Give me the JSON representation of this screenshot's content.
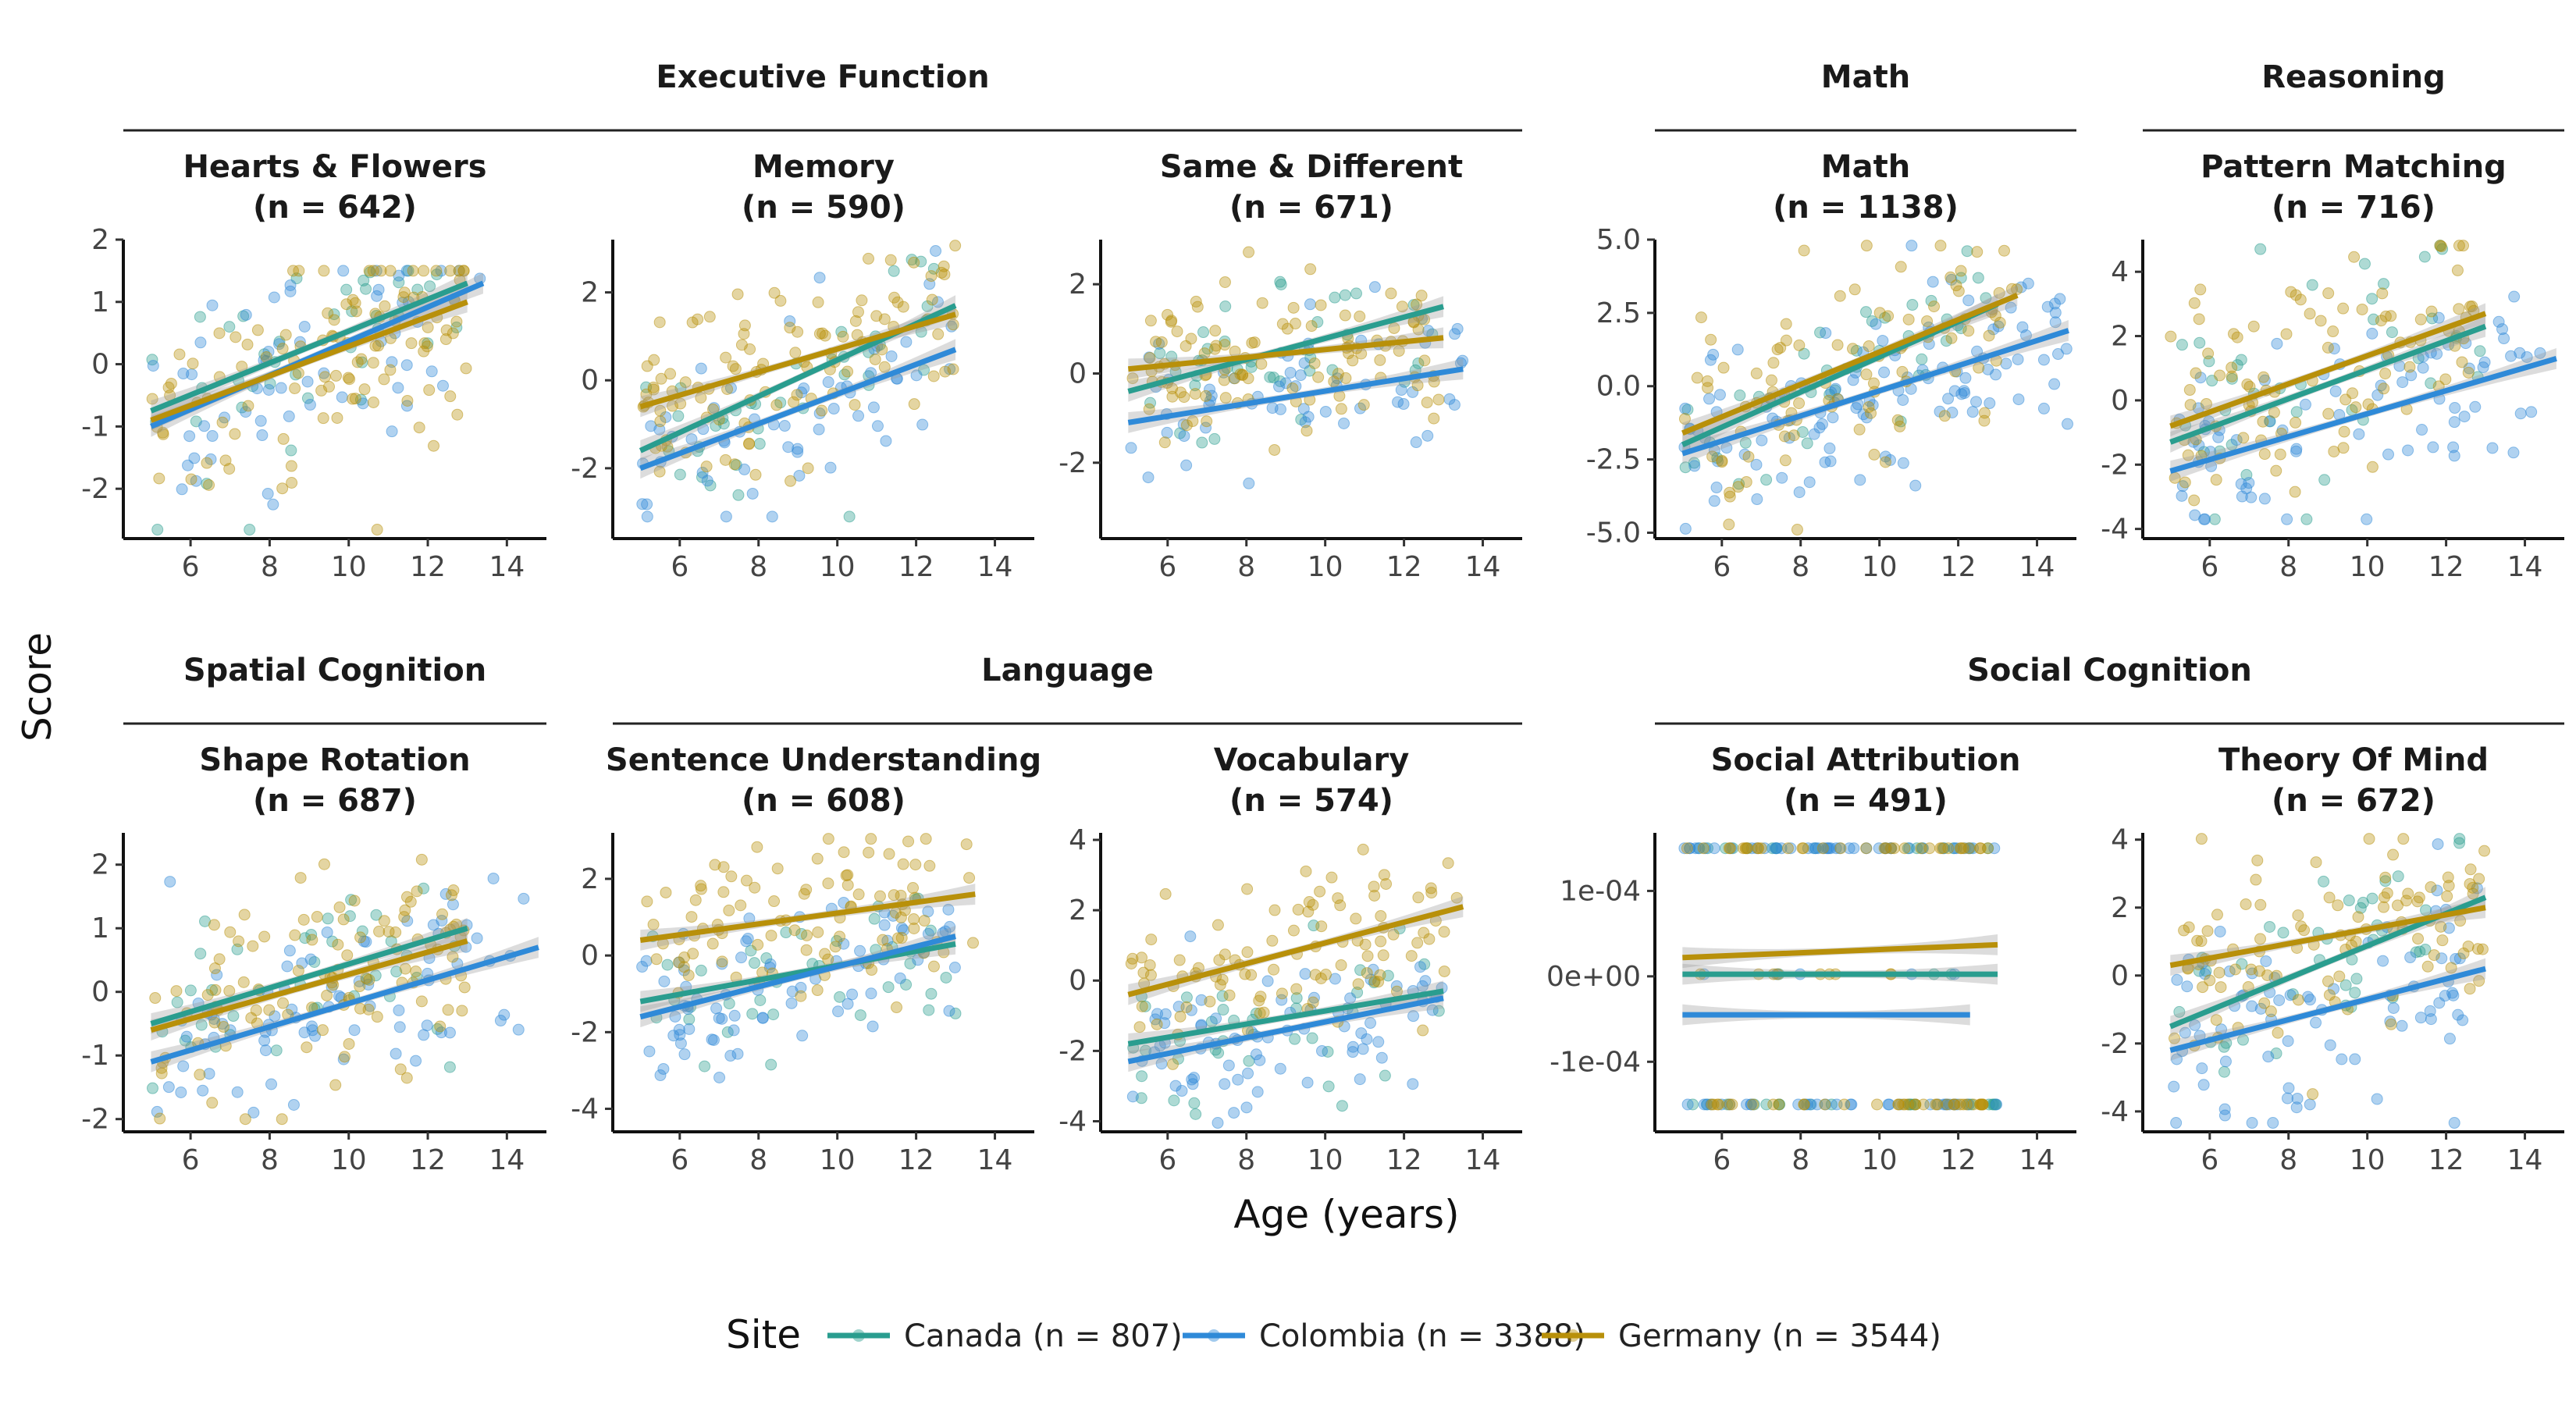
{
  "chart_data": {
    "type": "scatter",
    "xlabel": "Age (years)",
    "ylabel": "Score",
    "legend": {
      "title": "Site",
      "position": "bottom",
      "entries": [
        {
          "name": "Canada (n = 807)",
          "color": "#2a9d8f"
        },
        {
          "name": "Colombia (n = 3388)",
          "color": "#2f8ad8"
        },
        {
          "name": "Germany (n = 3544)",
          "color": "#b8900a"
        }
      ]
    },
    "groups": [
      {
        "name": "Executive Function"
      },
      {
        "name": "Math"
      },
      {
        "name": "Reasoning"
      },
      {
        "name": "Spatial Cognition"
      },
      {
        "name": "Language"
      },
      {
        "name": "Social Cognition"
      }
    ],
    "panels": [
      {
        "title": "Hearts & Flowers",
        "n_label": "(n = 642)",
        "xlim": [
          4.3,
          15
        ],
        "ylim": [
          -2.8,
          2
        ],
        "x_ticks": [
          "6",
          "8",
          "10",
          "12",
          "14"
        ],
        "y_ticks": [
          "-2",
          "-1",
          "0",
          "1",
          "2"
        ],
        "clip_top": 1.5,
        "clip_bottom": null,
        "noise": 0.9,
        "series": [
          {
            "site": "Canada",
            "fit": [
              [
                5,
                -0.75
              ],
              [
                13,
                1.3
              ]
            ],
            "n": 40
          },
          {
            "site": "Colombia",
            "fit": [
              [
                5,
                -1.0
              ],
              [
                13.4,
                1.3
              ]
            ],
            "n": 60
          },
          {
            "site": "Germany",
            "fit": [
              [
                5,
                -0.9
              ],
              [
                13,
                1.0
              ]
            ],
            "n": 110
          }
        ]
      },
      {
        "title": "Memory",
        "n_label": "(n = 590)",
        "xlim": [
          4.3,
          15
        ],
        "ylim": [
          -3.6,
          3.2
        ],
        "x_ticks": [
          "6",
          "8",
          "10",
          "12",
          "14"
        ],
        "y_ticks": [
          "-2",
          "0",
          "2"
        ],
        "clip_top": null,
        "clip_bottom": -3.1,
        "noise": 1.0,
        "series": [
          {
            "site": "Canada",
            "fit": [
              [
                5,
                -1.6
              ],
              [
                13,
                1.7
              ]
            ],
            "n": 40
          },
          {
            "site": "Colombia",
            "fit": [
              [
                5,
                -2.0
              ],
              [
                13,
                0.7
              ]
            ],
            "n": 60
          },
          {
            "site": "Germany",
            "fit": [
              [
                5,
                -0.6
              ],
              [
                13,
                1.5
              ]
            ],
            "n": 110
          }
        ]
      },
      {
        "title": "Same & Different",
        "n_label": "(n = 671)",
        "xlim": [
          4.3,
          15
        ],
        "ylim": [
          -3.7,
          3.0
        ],
        "x_ticks": [
          "6",
          "8",
          "10",
          "12",
          "14"
        ],
        "y_ticks": [
          "-2",
          "0",
          "2"
        ],
        "clip_top": null,
        "clip_bottom": null,
        "noise": 0.85,
        "series": [
          {
            "site": "Canada",
            "fit": [
              [
                5,
                -0.4
              ],
              [
                13,
                1.5
              ]
            ],
            "n": 40
          },
          {
            "site": "Colombia",
            "fit": [
              [
                5,
                -1.1
              ],
              [
                13.5,
                0.1
              ]
            ],
            "n": 60
          },
          {
            "site": "Germany",
            "fit": [
              [
                5,
                0.1
              ],
              [
                13,
                0.8
              ]
            ],
            "n": 110
          }
        ]
      },
      {
        "title": "Math",
        "n_label": "(n = 1138)",
        "xlim": [
          4.3,
          15
        ],
        "ylim": [
          -5.2,
          5.0
        ],
        "x_ticks": [
          "6",
          "8",
          "10",
          "12",
          "14"
        ],
        "y_ticks": [
          "-5.0",
          "-2.5",
          "0.0",
          "2.5",
          "5.0"
        ],
        "clip_top": null,
        "clip_bottom": null,
        "noise": 1.5,
        "series": [
          {
            "site": "Canada",
            "fit": [
              [
                5,
                -2.0
              ],
              [
                13,
                2.8
              ]
            ],
            "n": 40
          },
          {
            "site": "Colombia",
            "fit": [
              [
                5,
                -2.3
              ],
              [
                14.8,
                1.9
              ]
            ],
            "n": 120
          },
          {
            "site": "Germany",
            "fit": [
              [
                5,
                -1.6
              ],
              [
                13.5,
                3.1
              ]
            ],
            "n": 100
          }
        ]
      },
      {
        "title": "Pattern Matching",
        "n_label": "(n = 716)",
        "xlim": [
          4.3,
          15
        ],
        "ylim": [
          -4.3,
          5.0
        ],
        "x_ticks": [
          "6",
          "8",
          "10",
          "12",
          "14"
        ],
        "y_ticks": [
          "-4",
          "-2",
          "0",
          "2",
          "4"
        ],
        "clip_top": null,
        "clip_bottom": -3.7,
        "noise": 1.6,
        "series": [
          {
            "site": "Canada",
            "fit": [
              [
                5,
                -1.3
              ],
              [
                13,
                2.3
              ]
            ],
            "n": 40
          },
          {
            "site": "Colombia",
            "fit": [
              [
                5,
                -2.2
              ],
              [
                14.8,
                1.3
              ]
            ],
            "n": 80
          },
          {
            "site": "Germany",
            "fit": [
              [
                5,
                -0.8
              ],
              [
                13,
                2.7
              ]
            ],
            "n": 100
          }
        ]
      },
      {
        "title": "Shape Rotation",
        "n_label": "(n = 687)",
        "xlim": [
          4.3,
          15
        ],
        "ylim": [
          -2.2,
          2.5
        ],
        "x_ticks": [
          "6",
          "8",
          "10",
          "12",
          "14"
        ],
        "y_ticks": [
          "-2",
          "-1",
          "0",
          "1",
          "2"
        ],
        "clip_top": null,
        "clip_bottom": -2.0,
        "noise": 0.8,
        "series": [
          {
            "site": "Canada",
            "fit": [
              [
                5,
                -0.5
              ],
              [
                13,
                1.0
              ]
            ],
            "n": 40
          },
          {
            "site": "Colombia",
            "fit": [
              [
                5,
                -1.1
              ],
              [
                14.8,
                0.7
              ]
            ],
            "n": 80
          },
          {
            "site": "Germany",
            "fit": [
              [
                5,
                -0.6
              ],
              [
                13,
                0.8
              ]
            ],
            "n": 110
          }
        ]
      },
      {
        "title": "Sentence Understanding",
        "n_label": "(n = 608)",
        "xlim": [
          4.3,
          15
        ],
        "ylim": [
          -4.6,
          3.2
        ],
        "x_ticks": [
          "6",
          "8",
          "10",
          "12",
          "14"
        ],
        "y_ticks": [
          "-4",
          "-2",
          "0",
          "2"
        ],
        "clip_top": null,
        "clip_bottom": null,
        "noise": 1.0,
        "series": [
          {
            "site": "Canada",
            "fit": [
              [
                5,
                -1.2
              ],
              [
                13,
                0.3
              ]
            ],
            "n": 40
          },
          {
            "site": "Colombia",
            "fit": [
              [
                5,
                -1.6
              ],
              [
                13,
                0.5
              ]
            ],
            "n": 80
          },
          {
            "site": "Germany",
            "fit": [
              [
                5,
                0.4
              ],
              [
                13.5,
                1.6
              ]
            ],
            "n": 100
          }
        ]
      },
      {
        "title": "Vocabulary",
        "n_label": "(n = 574)",
        "xlim": [
          4.3,
          15
        ],
        "ylim": [
          -4.3,
          4.2
        ],
        "x_ticks": [
          "6",
          "8",
          "10",
          "12",
          "14"
        ],
        "y_ticks": [
          "-4",
          "-2",
          "0",
          "2",
          "4"
        ],
        "clip_top": null,
        "clip_bottom": null,
        "noise": 1.0,
        "series": [
          {
            "site": "Canada",
            "fit": [
              [
                5,
                -1.8
              ],
              [
                13,
                -0.3
              ]
            ],
            "n": 40
          },
          {
            "site": "Colombia",
            "fit": [
              [
                5,
                -2.3
              ],
              [
                13,
                -0.5
              ]
            ],
            "n": 80
          },
          {
            "site": "Germany",
            "fit": [
              [
                5,
                -0.4
              ],
              [
                13.5,
                2.1
              ]
            ],
            "n": 100
          }
        ]
      },
      {
        "title": "Social Attribution",
        "n_label": "(n = 491)",
        "xlim": [
          4.3,
          15
        ],
        "ylim": [
          -0.000182,
          0.000168
        ],
        "x_ticks": [
          "6",
          "8",
          "10",
          "12",
          "14"
        ],
        "y_ticks": [
          "-1e-04",
          "0e+00",
          "1e-04"
        ],
        "y_tick_values": [
          -0.0001,
          0,
          0.0001
        ],
        "discrete_levels": [
          0.00015,
          2.5e-06,
          -0.00015
        ],
        "noise": 0,
        "series": [
          {
            "site": "Canada",
            "fit": [
              [
                5,
                2.5e-06
              ],
              [
                13,
                2.5e-06
              ]
            ],
            "n": 40
          },
          {
            "site": "Colombia",
            "fit": [
              [
                5,
                -4.5e-05
              ],
              [
                12.3,
                -4.5e-05
              ]
            ],
            "n": 80
          },
          {
            "site": "Germany",
            "fit": [
              [
                5,
                2.2e-05
              ],
              [
                13,
                3.7e-05
              ]
            ],
            "n": 80
          }
        ]
      },
      {
        "title": "Theory Of Mind",
        "n_label": "(n = 672)",
        "xlim": [
          4.3,
          15
        ],
        "ylim": [
          -4.6,
          4.2
        ],
        "x_ticks": [
          "6",
          "8",
          "10",
          "12",
          "14"
        ],
        "y_ticks": [
          "-4",
          "-2",
          "0",
          "2",
          "4"
        ],
        "clip_top": null,
        "clip_bottom": null,
        "noise": 1.5,
        "series": [
          {
            "site": "Canada",
            "fit": [
              [
                5,
                -1.5
              ],
              [
                13,
                2.3
              ]
            ],
            "n": 40
          },
          {
            "site": "Colombia",
            "fit": [
              [
                5,
                -2.2
              ],
              [
                13,
                0.2
              ]
            ],
            "n": 80
          },
          {
            "site": "Germany",
            "fit": [
              [
                5,
                0.3
              ],
              [
                13,
                2.0
              ]
            ],
            "n": 100
          }
        ]
      }
    ]
  }
}
